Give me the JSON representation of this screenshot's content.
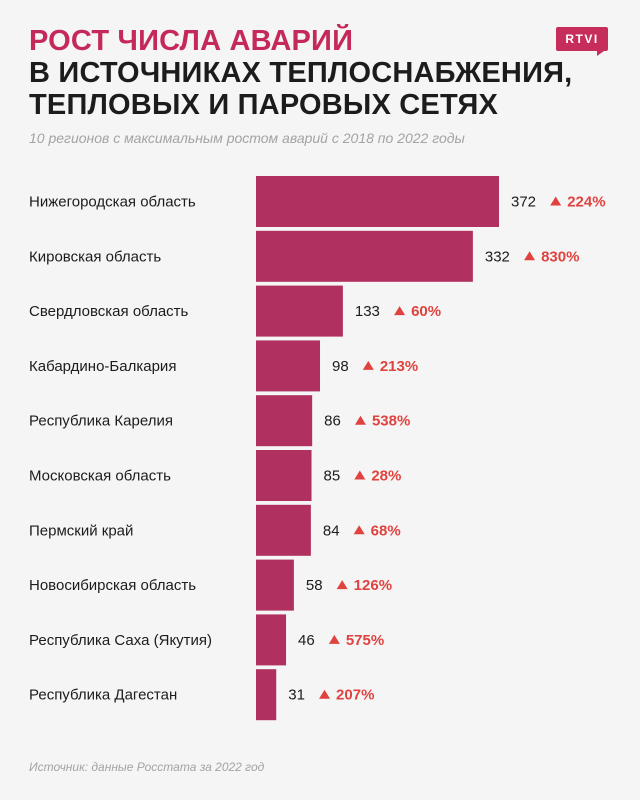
{
  "header": {
    "title_line1": "РОСТ ЧИСЛА АВАРИЙ",
    "title_line2": "В ИСТОЧНИКАХ ТЕПЛОСНАБЖЕНИЯ,",
    "title_line3": "ТЕПЛОВЫХ И ПАРОВЫХ СЕТЯХ",
    "subtitle": "10 регионов с максимальным ростом аварий с 2018 по 2022 годы",
    "logo_text": "RTVI"
  },
  "footer": {
    "source": "Источник: данные Росстата за 2022 год"
  },
  "colors": {
    "bar": "#b03060",
    "accent": "#c62d5a",
    "growth": "#e0433f",
    "text": "#1c1c1c",
    "muted": "#a3a3a3",
    "background": "#f5f5f5"
  },
  "chart_data": {
    "type": "bar",
    "orientation": "horizontal",
    "categories": [
      "Нижегородская область",
      "Кировская область",
      "Свердловская область",
      "Кабардино-Балкария",
      "Республика Карелия",
      "Московская область",
      "Пермский край",
      "Новосибирская область",
      "Республика Саха (Якутия)",
      "Республика Дагестан"
    ],
    "values": [
      372,
      332,
      133,
      98,
      86,
      85,
      84,
      58,
      46,
      31
    ],
    "growth_labels": [
      "224%",
      "830%",
      "60%",
      "213%",
      "538%",
      "28%",
      "68%",
      "126%",
      "575%",
      "207%"
    ],
    "grid": false
  }
}
